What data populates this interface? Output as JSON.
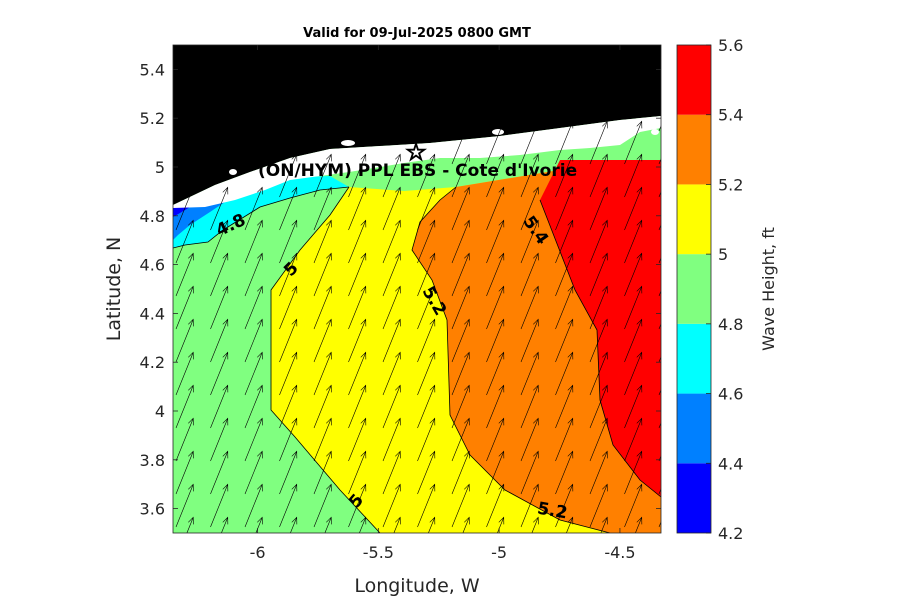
{
  "title": "Valid for 09-Jul-2025 0800 GMT",
  "location_label": "(ON/HYM) PPL EBS  - Cote d'Ivorie",
  "map": {
    "xlabel": "Longitude, W",
    "ylabel": "Latitude, N",
    "xlim": [
      -6.35,
      -4.33
    ],
    "ylim": [
      3.5,
      5.5
    ],
    "xticks": [
      -6,
      -5.5,
      -5,
      -4.5
    ],
    "xtick_labels": [
      "-6",
      "-5.5",
      "-5",
      "-4.5"
    ],
    "yticks": [
      3.6,
      3.8,
      4.0,
      4.2,
      4.4,
      4.6,
      4.8,
      5.0,
      5.2,
      5.4
    ],
    "ytick_labels": [
      "3.6",
      "3.8",
      "4",
      "4.2",
      "4.4",
      "4.6",
      "4.8",
      "5",
      "5.2",
      "5.4"
    ],
    "land_color": "#000000",
    "marker": {
      "name": "star-icon",
      "lon": -5.34,
      "lat": 5.05
    },
    "contour_labels": [
      {
        "text": "4.8",
        "lon": -6.11,
        "lat": 4.76,
        "angle": -25
      },
      {
        "text": "5",
        "lon": -5.86,
        "lat": 4.58,
        "angle": -45
      },
      {
        "text": "5.2",
        "lon": -5.27,
        "lat": 4.45,
        "angle": 60
      },
      {
        "text": "5.4",
        "lon": -4.85,
        "lat": 4.74,
        "angle": 55
      },
      {
        "text": "5",
        "lon": -5.59,
        "lat": 3.63,
        "angle": -50
      },
      {
        "text": "5.2",
        "lon": -4.78,
        "lat": 3.59,
        "angle": 10
      }
    ],
    "wave_direction": "north-northeast",
    "wave_direction_deg": 22
  },
  "colorbar": {
    "label": "Wave Height, ft",
    "levels": [
      4.2,
      4.4,
      4.6,
      4.8,
      5.0,
      5.2,
      5.4,
      5.6
    ],
    "level_labels": [
      "4.2",
      "4.4",
      "4.6",
      "4.8",
      "5",
      "5.2",
      "5.4",
      "5.6"
    ],
    "colors": [
      "#0000ff",
      "#0080ff",
      "#00ffff",
      "#80ff80",
      "#ffff00",
      "#ff8000",
      "#ff0000"
    ]
  }
}
